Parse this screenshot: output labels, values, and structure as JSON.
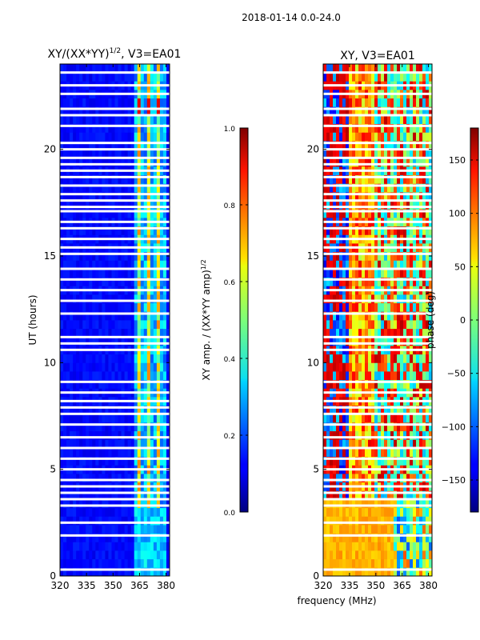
{
  "figure_title": "2018-01-14 0.0-24.0",
  "chart_data": [
    {
      "type": "heatmap",
      "title_main": "XY/(XX*YY)",
      "title_sup": "1/2",
      "title_rest": ", V3=EA01",
      "ylabel": "UT (hours)",
      "xlabel": "",
      "xlim": [
        320,
        382
      ],
      "ylim": [
        0,
        24
      ],
      "x_ticks": [
        320,
        335,
        350,
        365,
        380
      ],
      "y_ticks": [
        0,
        5,
        10,
        15,
        20
      ],
      "colorbar": {
        "label_main": "XY amp. / (XX*YY amp)",
        "label_sup": "1/2",
        "range": [
          0.0,
          1.0
        ],
        "ticks": [
          "0.0",
          "0.2",
          "0.4",
          "0.6",
          "0.8",
          "1.0"
        ],
        "tick_values": [
          0.0,
          0.2,
          0.4,
          0.6,
          0.8,
          1.0
        ]
      },
      "description": "Mostly low amplitude (~0.1) across band; high amplitude striped channels between ~362 and 380 MHz"
    },
    {
      "type": "heatmap",
      "title_main": "XY, V3=EA01",
      "ylabel": "",
      "xlabel": "frequency (MHz)",
      "xlim": [
        320,
        382
      ],
      "ylim": [
        0,
        24
      ],
      "x_ticks": [
        320,
        335,
        350,
        365,
        380
      ],
      "y_ticks": [
        0,
        5,
        10,
        15,
        20
      ],
      "colorbar": {
        "label_main": "phase (deg)",
        "range": [
          -180,
          180
        ],
        "ticks": [
          "−150",
          "−100",
          "−50",
          "0",
          "50",
          "100",
          "150"
        ],
        "tick_values": [
          -150,
          -100,
          -50,
          0,
          50,
          100,
          150
        ]
      },
      "description": "Phase near +60 deg (yellow) below 3.5 h; mixed red/blue/cyan structure above"
    }
  ],
  "blank_rows_hours": [
    0.3,
    1.9,
    2.5,
    3.3,
    3.6,
    3.9,
    4.2,
    4.5,
    5.0,
    5.5,
    6.0,
    6.5,
    7.1,
    7.6,
    7.9,
    8.2,
    8.6,
    9.1,
    10.6,
    10.9,
    11.2,
    12.3,
    12.9,
    13.4,
    13.9,
    14.4,
    15.1,
    15.4,
    15.8,
    16.3,
    16.6,
    17.1,
    17.3,
    17.6,
    17.9,
    18.3,
    18.7,
    19.0,
    19.3,
    19.6,
    20.0,
    20.3,
    21.1,
    21.6,
    21.9,
    22.6,
    23.0,
    23.6
  ]
}
